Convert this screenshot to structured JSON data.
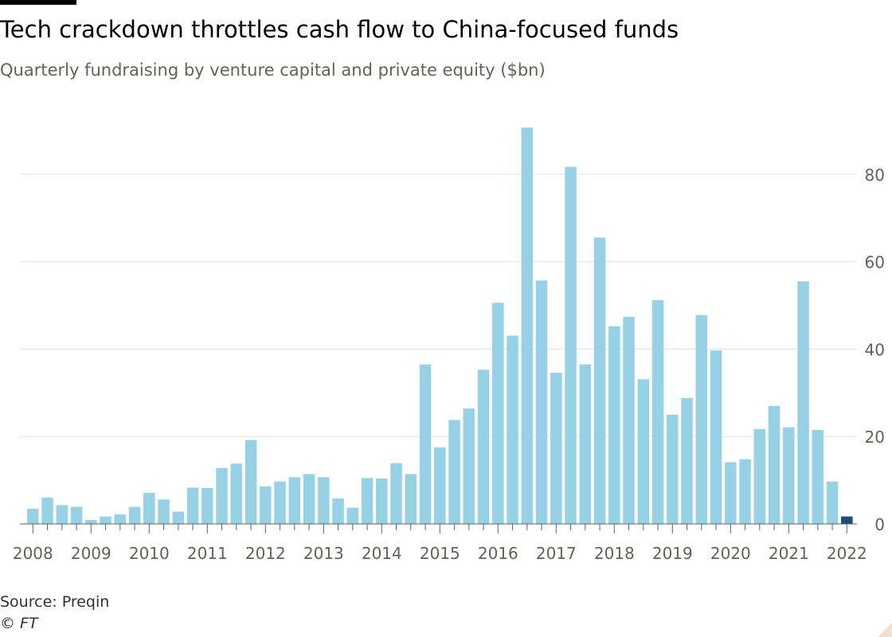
{
  "title": "Tech crackdown throttles cash flow to China-focused funds",
  "subtitle": "Quarterly fundraising by venture capital and private equity ($bn)",
  "source": "Source: Preqin",
  "copyright": "© FT",
  "colors": {
    "bar": "#96d1e6",
    "highlight_bar": "#1a4a80",
    "grid": "#e6e1dc",
    "axis": "#66605c",
    "text": "#33302e"
  },
  "chart_data": {
    "type": "bar",
    "title": "Tech crackdown throttles cash flow to China-focused funds",
    "subtitle": "Quarterly fundraising by venture capital and private equity ($bn)",
    "xlabel": "",
    "ylabel": "",
    "ylim": [
      0,
      90
    ],
    "y_ticks": [
      0,
      20,
      40,
      60,
      80
    ],
    "y_axis_position": "right",
    "grid": true,
    "x_tick_labels": [
      "2008",
      "2009",
      "2010",
      "2011",
      "2012",
      "2013",
      "2014",
      "2015",
      "2016",
      "2017",
      "2018",
      "2019",
      "2020",
      "2021",
      "2022"
    ],
    "categories": [
      "2008 Q1",
      "2008 Q2",
      "2008 Q3",
      "2008 Q4",
      "2009 Q1",
      "2009 Q2",
      "2009 Q3",
      "2009 Q4",
      "2010 Q1",
      "2010 Q2",
      "2010 Q3",
      "2010 Q4",
      "2011 Q1",
      "2011 Q2",
      "2011 Q3",
      "2011 Q4",
      "2012 Q1",
      "2012 Q2",
      "2012 Q3",
      "2012 Q4",
      "2013 Q1",
      "2013 Q2",
      "2013 Q3",
      "2013 Q4",
      "2014 Q1",
      "2014 Q2",
      "2014 Q3",
      "2014 Q4",
      "2015 Q1",
      "2015 Q2",
      "2015 Q3",
      "2015 Q4",
      "2016 Q1",
      "2016 Q2",
      "2016 Q3",
      "2016 Q4",
      "2017 Q1",
      "2017 Q2",
      "2017 Q3",
      "2017 Q4",
      "2018 Q1",
      "2018 Q2",
      "2018 Q3",
      "2018 Q4",
      "2019 Q1",
      "2019 Q2",
      "2019 Q3",
      "2019 Q4",
      "2020 Q1",
      "2020 Q2",
      "2020 Q3",
      "2020 Q4",
      "2021 Q1",
      "2021 Q2",
      "2021 Q3",
      "2021 Q4",
      "2022 Q1"
    ],
    "values": [
      3.5,
      6.0,
      4.3,
      3.9,
      0.9,
      1.7,
      2.2,
      3.9,
      7.1,
      5.6,
      2.8,
      8.3,
      8.2,
      12.8,
      13.8,
      19.2,
      8.6,
      9.7,
      10.7,
      11.4,
      10.7,
      5.8,
      3.7,
      10.5,
      10.4,
      13.9,
      11.4,
      36.5,
      17.5,
      23.8,
      26.4,
      35.3,
      50.6,
      43.1,
      90.7,
      55.7,
      34.6,
      81.7,
      36.5,
      65.5,
      45.2,
      47.4,
      33.1,
      51.2,
      25.0,
      28.8,
      47.8,
      39.7,
      14.1,
      14.8,
      21.7,
      27.0,
      22.1,
      55.5,
      21.5,
      9.7,
      1.7
    ],
    "highlight_index": 56
  }
}
